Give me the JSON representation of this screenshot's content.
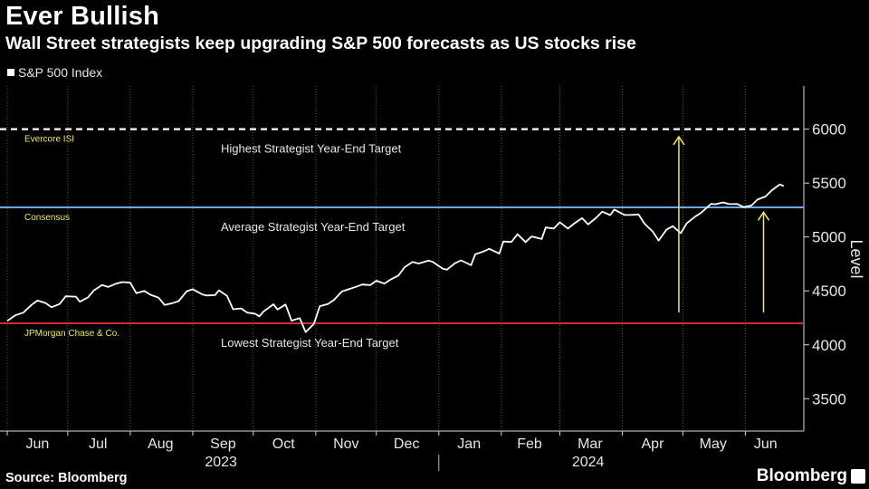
{
  "header": {
    "title": "Ever Bullish",
    "subtitle": "Wall Street strategists keep upgrading S&P 500 forecasts as US stocks rise",
    "legend_label": "S&P 500 Index"
  },
  "footer": {
    "source": "Source: Bloomberg",
    "brand": "Bloomberg"
  },
  "colors": {
    "background": "#000000",
    "series": "#ffffff",
    "high_target": "#ffffff",
    "consensus": "#6aa8f7",
    "low_target": "#d42a2a",
    "annotation": "#f2ea59",
    "grid": "#5a5a5a"
  },
  "chart_data": {
    "type": "line",
    "title": "Ever Bullish",
    "subtitle": "Wall Street strategists keep upgrading S&P 500 forecasts as US stocks rise",
    "xlabel": "",
    "ylabel": "Level",
    "ylim": [
      3200,
      6400
    ],
    "yticks": [
      3500,
      4000,
      4500,
      5000,
      5500,
      6000
    ],
    "x_range": [
      "2023-06-01",
      "2024-06-21"
    ],
    "x_tick_labels": [
      "Jun",
      "Jul",
      "Aug",
      "Sep",
      "Oct",
      "Nov",
      "Dec",
      "Jan",
      "Feb",
      "Mar",
      "Apr",
      "May",
      "Jun"
    ],
    "x_tick_dates": [
      "2023-06-01",
      "2023-07-01",
      "2023-08-01",
      "2023-09-01",
      "2023-10-01",
      "2023-11-01",
      "2023-12-01",
      "2024-01-01",
      "2024-02-01",
      "2024-03-01",
      "2024-04-01",
      "2024-05-01",
      "2024-06-01"
    ],
    "year_labels": [
      {
        "label": "2023",
        "date": "2023-09-15"
      },
      {
        "label": "2024",
        "date": "2024-03-15"
      }
    ],
    "grid": "vertical",
    "legend": "top-left",
    "series": [
      {
        "name": "S&P 500 Index",
        "points": [
          [
            "2023-06-01",
            4221
          ],
          [
            "2023-06-05",
            4273
          ],
          [
            "2023-06-09",
            4299
          ],
          [
            "2023-06-13",
            4369
          ],
          [
            "2023-06-16",
            4410
          ],
          [
            "2023-06-20",
            4388
          ],
          [
            "2023-06-23",
            4348
          ],
          [
            "2023-06-27",
            4378
          ],
          [
            "2023-06-30",
            4450
          ],
          [
            "2023-07-05",
            4446
          ],
          [
            "2023-07-07",
            4399
          ],
          [
            "2023-07-11",
            4439
          ],
          [
            "2023-07-14",
            4505
          ],
          [
            "2023-07-18",
            4555
          ],
          [
            "2023-07-21",
            4536
          ],
          [
            "2023-07-25",
            4567
          ],
          [
            "2023-07-28",
            4582
          ],
          [
            "2023-08-01",
            4577
          ],
          [
            "2023-08-04",
            4478
          ],
          [
            "2023-08-08",
            4499
          ],
          [
            "2023-08-11",
            4464
          ],
          [
            "2023-08-15",
            4437
          ],
          [
            "2023-08-18",
            4370
          ],
          [
            "2023-08-22",
            4387
          ],
          [
            "2023-08-25",
            4405
          ],
          [
            "2023-08-29",
            4497
          ],
          [
            "2023-09-01",
            4515
          ],
          [
            "2023-09-06",
            4465
          ],
          [
            "2023-09-08",
            4457
          ],
          [
            "2023-09-12",
            4461
          ],
          [
            "2023-09-14",
            4505
          ],
          [
            "2023-09-18",
            4453
          ],
          [
            "2023-09-21",
            4330
          ],
          [
            "2023-09-25",
            4337
          ],
          [
            "2023-09-28",
            4299
          ],
          [
            "2023-10-02",
            4288
          ],
          [
            "2023-10-04",
            4263
          ],
          [
            "2023-10-06",
            4308
          ],
          [
            "2023-10-11",
            4376
          ],
          [
            "2023-10-13",
            4327
          ],
          [
            "2023-10-17",
            4373
          ],
          [
            "2023-10-20",
            4224
          ],
          [
            "2023-10-24",
            4247
          ],
          [
            "2023-10-27",
            4117
          ],
          [
            "2023-10-31",
            4193
          ],
          [
            "2023-11-03",
            4358
          ],
          [
            "2023-11-07",
            4378
          ],
          [
            "2023-11-10",
            4415
          ],
          [
            "2023-11-14",
            4495
          ],
          [
            "2023-11-17",
            4514
          ],
          [
            "2023-11-21",
            4538
          ],
          [
            "2023-11-24",
            4559
          ],
          [
            "2023-11-28",
            4554
          ],
          [
            "2023-12-01",
            4594
          ],
          [
            "2023-12-05",
            4567
          ],
          [
            "2023-12-08",
            4604
          ],
          [
            "2023-12-12",
            4643
          ],
          [
            "2023-12-15",
            4719
          ],
          [
            "2023-12-19",
            4768
          ],
          [
            "2023-12-22",
            4754
          ],
          [
            "2023-12-27",
            4781
          ],
          [
            "2023-12-29",
            4769
          ],
          [
            "2024-01-03",
            4705
          ],
          [
            "2024-01-05",
            4697
          ],
          [
            "2024-01-09",
            4756
          ],
          [
            "2024-01-12",
            4783
          ],
          [
            "2024-01-17",
            4739
          ],
          [
            "2024-01-19",
            4839
          ],
          [
            "2024-01-23",
            4865
          ],
          [
            "2024-01-26",
            4890
          ],
          [
            "2024-01-31",
            4846
          ],
          [
            "2024-02-02",
            4958
          ],
          [
            "2024-02-06",
            4954
          ],
          [
            "2024-02-09",
            5026
          ],
          [
            "2024-02-13",
            4953
          ],
          [
            "2024-02-16",
            5005
          ],
          [
            "2024-02-21",
            4981
          ],
          [
            "2024-02-23",
            5088
          ],
          [
            "2024-02-27",
            5078
          ],
          [
            "2024-03-01",
            5137
          ],
          [
            "2024-03-05",
            5078
          ],
          [
            "2024-03-08",
            5123
          ],
          [
            "2024-03-12",
            5175
          ],
          [
            "2024-03-15",
            5117
          ],
          [
            "2024-03-19",
            5178
          ],
          [
            "2024-03-22",
            5234
          ],
          [
            "2024-03-26",
            5203
          ],
          [
            "2024-03-28",
            5254
          ],
          [
            "2024-04-02",
            5205
          ],
          [
            "2024-04-05",
            5204
          ],
          [
            "2024-04-09",
            5209
          ],
          [
            "2024-04-12",
            5123
          ],
          [
            "2024-04-16",
            5051
          ],
          [
            "2024-04-19",
            4967
          ],
          [
            "2024-04-23",
            5070
          ],
          [
            "2024-04-26",
            5100
          ],
          [
            "2024-04-30",
            5036
          ],
          [
            "2024-05-03",
            5128
          ],
          [
            "2024-05-07",
            5187
          ],
          [
            "2024-05-10",
            5223
          ],
          [
            "2024-05-15",
            5308
          ],
          [
            "2024-05-17",
            5303
          ],
          [
            "2024-05-21",
            5321
          ],
          [
            "2024-05-24",
            5305
          ],
          [
            "2024-05-28",
            5306
          ],
          [
            "2024-05-31",
            5278
          ],
          [
            "2024-06-04",
            5291
          ],
          [
            "2024-06-07",
            5347
          ],
          [
            "2024-06-11",
            5375
          ],
          [
            "2024-06-14",
            5431
          ],
          [
            "2024-06-18",
            5487
          ],
          [
            "2024-06-20",
            5473
          ]
        ]
      }
    ],
    "reference_lines": [
      {
        "label": "Evercore ISI",
        "value": 6000,
        "style": "dashed",
        "color": "#ffffff",
        "annotation": "Highest Strategist Year-End Target"
      },
      {
        "label": "Consensus",
        "value": 5275,
        "style": "solid",
        "color": "#6aa8f7",
        "annotation": "Average Strategist Year-End Target"
      },
      {
        "label": "JPMorgan Chase & Co.",
        "value": 4200,
        "style": "solid",
        "color": "#d42a2a",
        "annotation": "Lowest Strategist Year-End Target"
      }
    ],
    "arrows": [
      {
        "date": "2024-04-29",
        "from": 4300,
        "to": 5930
      },
      {
        "date": "2024-06-10",
        "from": 4300,
        "to": 5230
      }
    ]
  }
}
